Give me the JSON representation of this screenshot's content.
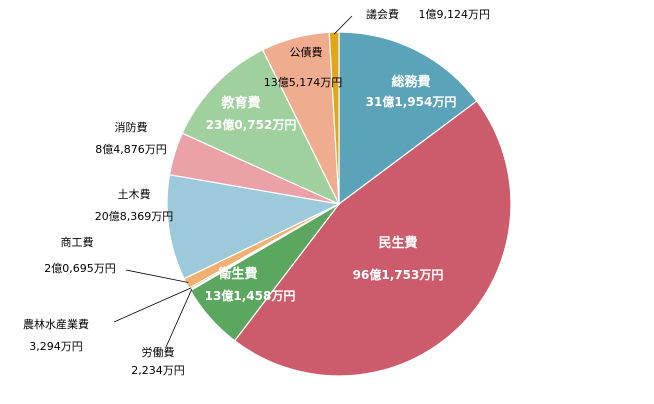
{
  "chart_data": {
    "type": "pie",
    "start_angle_deg": 0,
    "direction": "clockwise",
    "slices": [
      {
        "label": "総務費",
        "value_text": "31億1,954万円",
        "value": 311954,
        "color": "#5ba3b8"
      },
      {
        "label": "民生費",
        "value_text": "96億1,753万円",
        "value": 961753,
        "color": "#cc5c6c"
      },
      {
        "label": "衛生費",
        "value_text": "13億1,458万円",
        "value": 131458,
        "color": "#5ba75f"
      },
      {
        "label": "労働費",
        "value_text": "2,234万円",
        "value": 2234,
        "color": "#8b5a9e"
      },
      {
        "label": "農林水産業費",
        "value_text": "3,294万円",
        "value": 3294,
        "color": "#7a8a2c"
      },
      {
        "label": "商工費",
        "value_text": "2億0,695万円",
        "value": 20695,
        "color": "#f0b070"
      },
      {
        "label": "土木費",
        "value_text": "20億8,369万円",
        "value": 208369,
        "color": "#9ccadb"
      },
      {
        "label": "消防費",
        "value_text": "8億4,876万円",
        "value": 84876,
        "color": "#eba1a8"
      },
      {
        "label": "教育費",
        "value_text": "23億0,752万円",
        "value": 230752,
        "color": "#9fd09e"
      },
      {
        "label": "公債費",
        "value_text": "13億5,174万円",
        "value": 135174,
        "color": "#efac8f"
      },
      {
        "label": "議会費",
        "value_text": "1億9,124万円",
        "value": 19124,
        "color": "#e2a516"
      }
    ]
  }
}
